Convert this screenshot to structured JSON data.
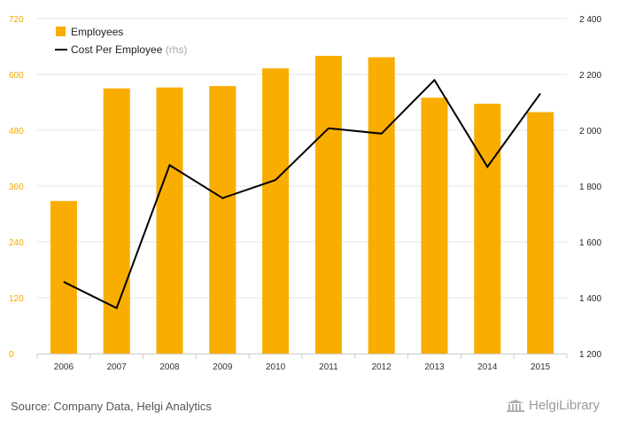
{
  "chart_data": {
    "type": "bar",
    "categories": [
      "2006",
      "2007",
      "2008",
      "2009",
      "2010",
      "2011",
      "2012",
      "2013",
      "2014",
      "2015"
    ],
    "series": [
      {
        "name": "Employees",
        "type": "bar",
        "axis": "left",
        "values": [
          328,
          570,
          572,
          575,
          613,
          640,
          637,
          550,
          537,
          519
        ]
      },
      {
        "name": "Cost Per Employee",
        "type": "line",
        "axis": "right",
        "values": [
          1457,
          1363,
          1875,
          1757,
          1822,
          2007,
          1988,
          2180,
          1869,
          2132
        ]
      }
    ],
    "legend_suffix": "(rhs)",
    "y_left": {
      "ylim": [
        0,
        720
      ],
      "ticks": [
        0,
        120,
        240,
        360,
        480,
        600,
        720
      ],
      "tick_labels": [
        "0",
        "120",
        "240",
        "360",
        "480",
        "600",
        "720"
      ]
    },
    "y_right": {
      "ylim": [
        1200,
        2400
      ],
      "ticks": [
        1200,
        1400,
        1600,
        1800,
        2000,
        2200,
        2400
      ],
      "tick_labels": [
        "1 200",
        "1 400",
        "1 600",
        "1 800",
        "2 000",
        "2 200",
        "2 400"
      ]
    },
    "grid": true,
    "legend_position": "top-left",
    "colors": {
      "bar": "#f9ad00",
      "line": "#000000",
      "grid": "#e6e6e6",
      "left_axis_text": "#f2a900"
    }
  },
  "footer": {
    "source": "Source: Company Data, Helgi Analytics",
    "brand": "HelgiLibrary",
    "brand_icon": "library-building-icon"
  }
}
